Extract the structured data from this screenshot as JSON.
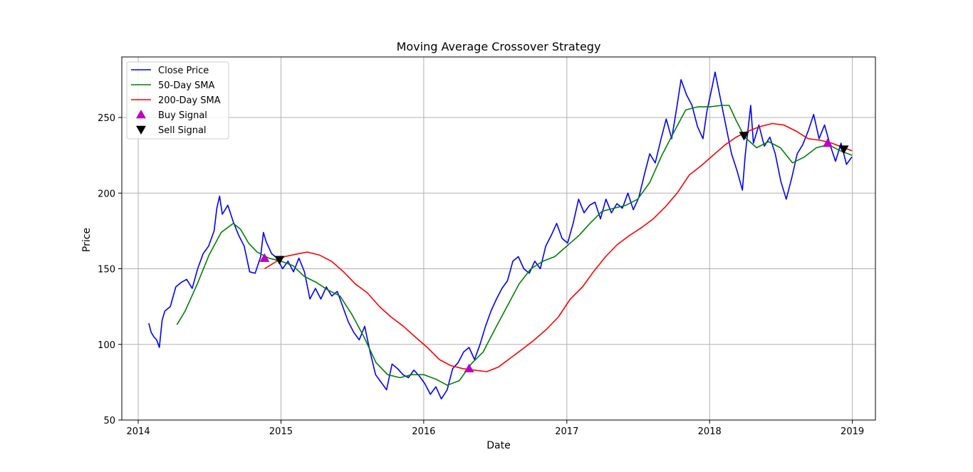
{
  "chart_data": {
    "type": "line",
    "title": "Moving Average Crossover Strategy",
    "xlabel": "Date",
    "ylabel": "Price",
    "xlim": [
      "2013-11-20",
      "2019-03-01"
    ],
    "ylim": [
      50,
      290
    ],
    "xticks": [
      "2014",
      "2015",
      "2016",
      "2017",
      "2018",
      "2019"
    ],
    "yticks": [
      50,
      100,
      150,
      200,
      250
    ],
    "grid": true,
    "legend_position": "top-left",
    "colors": {
      "close": "#0000ff",
      "sma50": "#008000",
      "sma200": "#ff0000",
      "buy": "#bf00bf",
      "sell": "#000000",
      "grid": "#b0b0b0"
    },
    "series": [
      {
        "name": "Close Price",
        "color": "#0000ff",
        "points": [
          [
            "2014-01-28",
            114
          ],
          [
            "2014-02-03",
            108
          ],
          [
            "2014-02-10",
            105
          ],
          [
            "2014-02-17",
            103
          ],
          [
            "2014-02-24",
            98
          ],
          [
            "2014-03-03",
            116
          ],
          [
            "2014-03-10",
            122
          ],
          [
            "2014-03-24",
            125
          ],
          [
            "2014-04-07",
            138
          ],
          [
            "2014-04-21",
            141
          ],
          [
            "2014-05-05",
            143
          ],
          [
            "2014-05-19",
            137
          ],
          [
            "2014-06-02",
            150
          ],
          [
            "2014-06-16",
            160
          ],
          [
            "2014-06-30",
            165
          ],
          [
            "2014-07-14",
            175
          ],
          [
            "2014-07-21",
            190
          ],
          [
            "2014-07-28",
            198
          ],
          [
            "2014-08-04",
            186
          ],
          [
            "2014-08-18",
            192
          ],
          [
            "2014-09-01",
            181
          ],
          [
            "2014-09-15",
            172
          ],
          [
            "2014-09-29",
            165
          ],
          [
            "2014-10-13",
            148
          ],
          [
            "2014-10-27",
            147
          ],
          [
            "2014-11-10",
            158
          ],
          [
            "2014-11-17",
            174
          ],
          [
            "2014-11-24",
            168
          ],
          [
            "2014-12-08",
            160
          ],
          [
            "2014-12-22",
            157
          ],
          [
            "2015-01-05",
            150
          ],
          [
            "2015-01-19",
            155
          ],
          [
            "2015-02-02",
            148
          ],
          [
            "2015-02-16",
            157
          ],
          [
            "2015-03-02",
            148
          ],
          [
            "2015-03-16",
            130
          ],
          [
            "2015-03-30",
            137
          ],
          [
            "2015-04-13",
            130
          ],
          [
            "2015-04-27",
            138
          ],
          [
            "2015-05-11",
            132
          ],
          [
            "2015-05-25",
            135
          ],
          [
            "2015-06-08",
            125
          ],
          [
            "2015-06-22",
            115
          ],
          [
            "2015-07-06",
            108
          ],
          [
            "2015-07-20",
            103
          ],
          [
            "2015-08-03",
            112
          ],
          [
            "2015-08-17",
            95
          ],
          [
            "2015-08-31",
            80
          ],
          [
            "2015-09-14",
            75
          ],
          [
            "2015-09-28",
            70
          ],
          [
            "2015-10-12",
            87
          ],
          [
            "2015-10-26",
            84
          ],
          [
            "2015-11-09",
            80
          ],
          [
            "2015-11-23",
            78
          ],
          [
            "2015-12-07",
            83
          ],
          [
            "2015-12-21",
            79
          ],
          [
            "2016-01-04",
            74
          ],
          [
            "2016-01-18",
            67
          ],
          [
            "2016-02-01",
            72
          ],
          [
            "2016-02-15",
            64
          ],
          [
            "2016-03-01",
            70
          ],
          [
            "2016-03-15",
            84
          ],
          [
            "2016-03-29",
            88
          ],
          [
            "2016-04-12",
            95
          ],
          [
            "2016-04-26",
            98
          ],
          [
            "2016-05-10",
            90
          ],
          [
            "2016-05-24",
            100
          ],
          [
            "2016-06-07",
            112
          ],
          [
            "2016-06-21",
            122
          ],
          [
            "2016-07-05",
            130
          ],
          [
            "2016-07-19",
            137
          ],
          [
            "2016-08-02",
            142
          ],
          [
            "2016-08-16",
            155
          ],
          [
            "2016-08-30",
            158
          ],
          [
            "2016-09-13",
            150
          ],
          [
            "2016-09-27",
            147
          ],
          [
            "2016-10-11",
            155
          ],
          [
            "2016-10-25",
            150
          ],
          [
            "2016-11-08",
            165
          ],
          [
            "2016-11-22",
            172
          ],
          [
            "2016-12-06",
            180
          ],
          [
            "2016-12-20",
            170
          ],
          [
            "2017-01-03",
            167
          ],
          [
            "2017-01-17",
            180
          ],
          [
            "2017-01-31",
            196
          ],
          [
            "2017-02-14",
            187
          ],
          [
            "2017-02-28",
            192
          ],
          [
            "2017-03-14",
            194
          ],
          [
            "2017-03-28",
            183
          ],
          [
            "2017-04-11",
            196
          ],
          [
            "2017-04-25",
            187
          ],
          [
            "2017-05-09",
            193
          ],
          [
            "2017-05-23",
            190
          ],
          [
            "2017-06-06",
            200
          ],
          [
            "2017-06-20",
            189
          ],
          [
            "2017-07-04",
            197
          ],
          [
            "2017-07-18",
            212
          ],
          [
            "2017-08-01",
            226
          ],
          [
            "2017-08-15",
            220
          ],
          [
            "2017-08-29",
            235
          ],
          [
            "2017-09-12",
            249
          ],
          [
            "2017-09-26",
            236
          ],
          [
            "2017-10-10",
            258
          ],
          [
            "2017-10-20",
            275
          ],
          [
            "2017-11-03",
            265
          ],
          [
            "2017-11-17",
            258
          ],
          [
            "2017-12-01",
            244
          ],
          [
            "2017-12-15",
            236
          ],
          [
            "2017-12-25",
            254
          ],
          [
            "2018-01-08",
            271
          ],
          [
            "2018-01-15",
            280
          ],
          [
            "2018-01-29",
            262
          ],
          [
            "2018-02-12",
            244
          ],
          [
            "2018-02-26",
            226
          ],
          [
            "2018-03-12",
            215
          ],
          [
            "2018-03-26",
            202
          ],
          [
            "2018-04-02",
            225
          ],
          [
            "2018-04-16",
            258
          ],
          [
            "2018-04-23",
            233
          ],
          [
            "2018-05-07",
            245
          ],
          [
            "2018-05-21",
            231
          ],
          [
            "2018-06-04",
            237
          ],
          [
            "2018-06-18",
            226
          ],
          [
            "2018-07-02",
            208
          ],
          [
            "2018-07-16",
            196
          ],
          [
            "2018-07-30",
            210
          ],
          [
            "2018-08-13",
            226
          ],
          [
            "2018-08-27",
            232
          ],
          [
            "2018-09-10",
            241
          ],
          [
            "2018-09-24",
            252
          ],
          [
            "2018-10-08",
            236
          ],
          [
            "2018-10-22",
            245
          ],
          [
            "2018-11-05",
            232
          ],
          [
            "2018-11-19",
            221
          ],
          [
            "2018-12-03",
            233
          ],
          [
            "2018-12-17",
            219
          ],
          [
            "2018-12-31",
            224
          ]
        ]
      },
      {
        "name": "50-Day SMA",
        "color": "#008000",
        "points": [
          [
            "2014-04-10",
            113
          ],
          [
            "2014-05-01",
            122
          ],
          [
            "2014-06-01",
            140
          ],
          [
            "2014-07-01",
            159
          ],
          [
            "2014-08-01",
            174
          ],
          [
            "2014-09-01",
            180
          ],
          [
            "2014-09-20",
            176
          ],
          [
            "2014-10-10",
            167
          ],
          [
            "2014-11-01",
            161
          ],
          [
            "2014-12-01",
            157
          ],
          [
            "2015-01-01",
            155
          ],
          [
            "2015-02-01",
            152
          ],
          [
            "2015-03-01",
            145
          ],
          [
            "2015-04-01",
            141
          ],
          [
            "2015-05-01",
            136
          ],
          [
            "2015-06-01",
            132
          ],
          [
            "2015-07-01",
            120
          ],
          [
            "2015-08-01",
            105
          ],
          [
            "2015-09-01",
            88
          ],
          [
            "2015-10-01",
            80
          ],
          [
            "2015-11-01",
            78
          ],
          [
            "2015-12-01",
            80
          ],
          [
            "2016-01-01",
            80
          ],
          [
            "2016-02-01",
            77
          ],
          [
            "2016-03-01",
            73
          ],
          [
            "2016-04-01",
            76
          ],
          [
            "2016-05-01",
            87
          ],
          [
            "2016-06-01",
            95
          ],
          [
            "2016-07-01",
            110
          ],
          [
            "2016-08-01",
            125
          ],
          [
            "2016-09-01",
            140
          ],
          [
            "2016-10-01",
            150
          ],
          [
            "2016-11-01",
            155
          ],
          [
            "2016-12-01",
            158
          ],
          [
            "2017-01-01",
            165
          ],
          [
            "2017-02-01",
            172
          ],
          [
            "2017-03-01",
            180
          ],
          [
            "2017-04-01",
            188
          ],
          [
            "2017-05-01",
            190
          ],
          [
            "2017-06-01",
            192
          ],
          [
            "2017-07-01",
            196
          ],
          [
            "2017-08-01",
            207
          ],
          [
            "2017-09-01",
            225
          ],
          [
            "2017-10-01",
            240
          ],
          [
            "2017-11-01",
            255
          ],
          [
            "2017-12-01",
            257
          ],
          [
            "2018-01-01",
            257
          ],
          [
            "2018-02-01",
            258
          ],
          [
            "2018-02-20",
            258
          ],
          [
            "2018-03-10",
            248
          ],
          [
            "2018-04-01",
            237
          ],
          [
            "2018-05-01",
            230
          ],
          [
            "2018-06-01",
            234
          ],
          [
            "2018-07-01",
            230
          ],
          [
            "2018-08-01",
            220
          ],
          [
            "2018-09-01",
            224
          ],
          [
            "2018-10-01",
            230
          ],
          [
            "2018-11-01",
            232
          ],
          [
            "2018-12-01",
            228
          ],
          [
            "2018-12-31",
            225
          ]
        ]
      },
      {
        "name": "200-Day SMA",
        "color": "#ff0000",
        "points": [
          [
            "2014-11-20",
            150
          ],
          [
            "2014-12-15",
            154
          ],
          [
            "2015-01-10",
            158
          ],
          [
            "2015-02-15",
            160
          ],
          [
            "2015-03-10",
            161
          ],
          [
            "2015-04-10",
            159
          ],
          [
            "2015-05-10",
            155
          ],
          [
            "2015-06-10",
            148
          ],
          [
            "2015-07-10",
            140
          ],
          [
            "2015-08-10",
            134
          ],
          [
            "2015-09-10",
            125
          ],
          [
            "2015-10-10",
            118
          ],
          [
            "2015-11-10",
            112
          ],
          [
            "2015-12-10",
            105
          ],
          [
            "2016-01-10",
            98
          ],
          [
            "2016-02-10",
            90
          ],
          [
            "2016-03-10",
            86
          ],
          [
            "2016-04-10",
            84
          ],
          [
            "2016-05-10",
            83
          ],
          [
            "2016-06-10",
            82
          ],
          [
            "2016-07-10",
            85
          ],
          [
            "2016-08-10",
            91
          ],
          [
            "2016-09-10",
            97
          ],
          [
            "2016-10-10",
            103
          ],
          [
            "2016-11-10",
            110
          ],
          [
            "2016-12-10",
            118
          ],
          [
            "2017-01-10",
            130
          ],
          [
            "2017-02-10",
            138
          ],
          [
            "2017-03-10",
            148
          ],
          [
            "2017-04-10",
            158
          ],
          [
            "2017-05-10",
            166
          ],
          [
            "2017-06-10",
            172
          ],
          [
            "2017-07-10",
            177
          ],
          [
            "2017-08-10",
            183
          ],
          [
            "2017-09-10",
            191
          ],
          [
            "2017-10-10",
            200
          ],
          [
            "2017-11-10",
            212
          ],
          [
            "2017-12-10",
            218
          ],
          [
            "2018-01-10",
            225
          ],
          [
            "2018-02-10",
            232
          ],
          [
            "2018-03-10",
            237
          ],
          [
            "2018-04-10",
            241
          ],
          [
            "2018-05-10",
            244
          ],
          [
            "2018-06-10",
            246
          ],
          [
            "2018-07-10",
            245
          ],
          [
            "2018-08-10",
            241
          ],
          [
            "2018-09-10",
            236
          ],
          [
            "2018-10-10",
            235
          ],
          [
            "2018-11-10",
            233
          ],
          [
            "2018-12-10",
            230
          ],
          [
            "2018-12-31",
            228
          ]
        ]
      }
    ],
    "buy_signals": {
      "name": "Buy Signal",
      "color": "#bf00bf",
      "points": [
        [
          "2014-11-20",
          157
        ],
        [
          "2016-04-26",
          84
        ],
        [
          "2018-10-30",
          233
        ]
      ]
    },
    "sell_signals": {
      "name": "Sell Signal",
      "color": "#000000",
      "points": [
        [
          "2014-12-28",
          156
        ],
        [
          "2018-03-30",
          238
        ],
        [
          "2018-12-10",
          229
        ]
      ]
    },
    "legend": [
      "Close Price",
      "50-Day SMA",
      "200-Day SMA",
      "Buy Signal",
      "Sell Signal"
    ]
  }
}
